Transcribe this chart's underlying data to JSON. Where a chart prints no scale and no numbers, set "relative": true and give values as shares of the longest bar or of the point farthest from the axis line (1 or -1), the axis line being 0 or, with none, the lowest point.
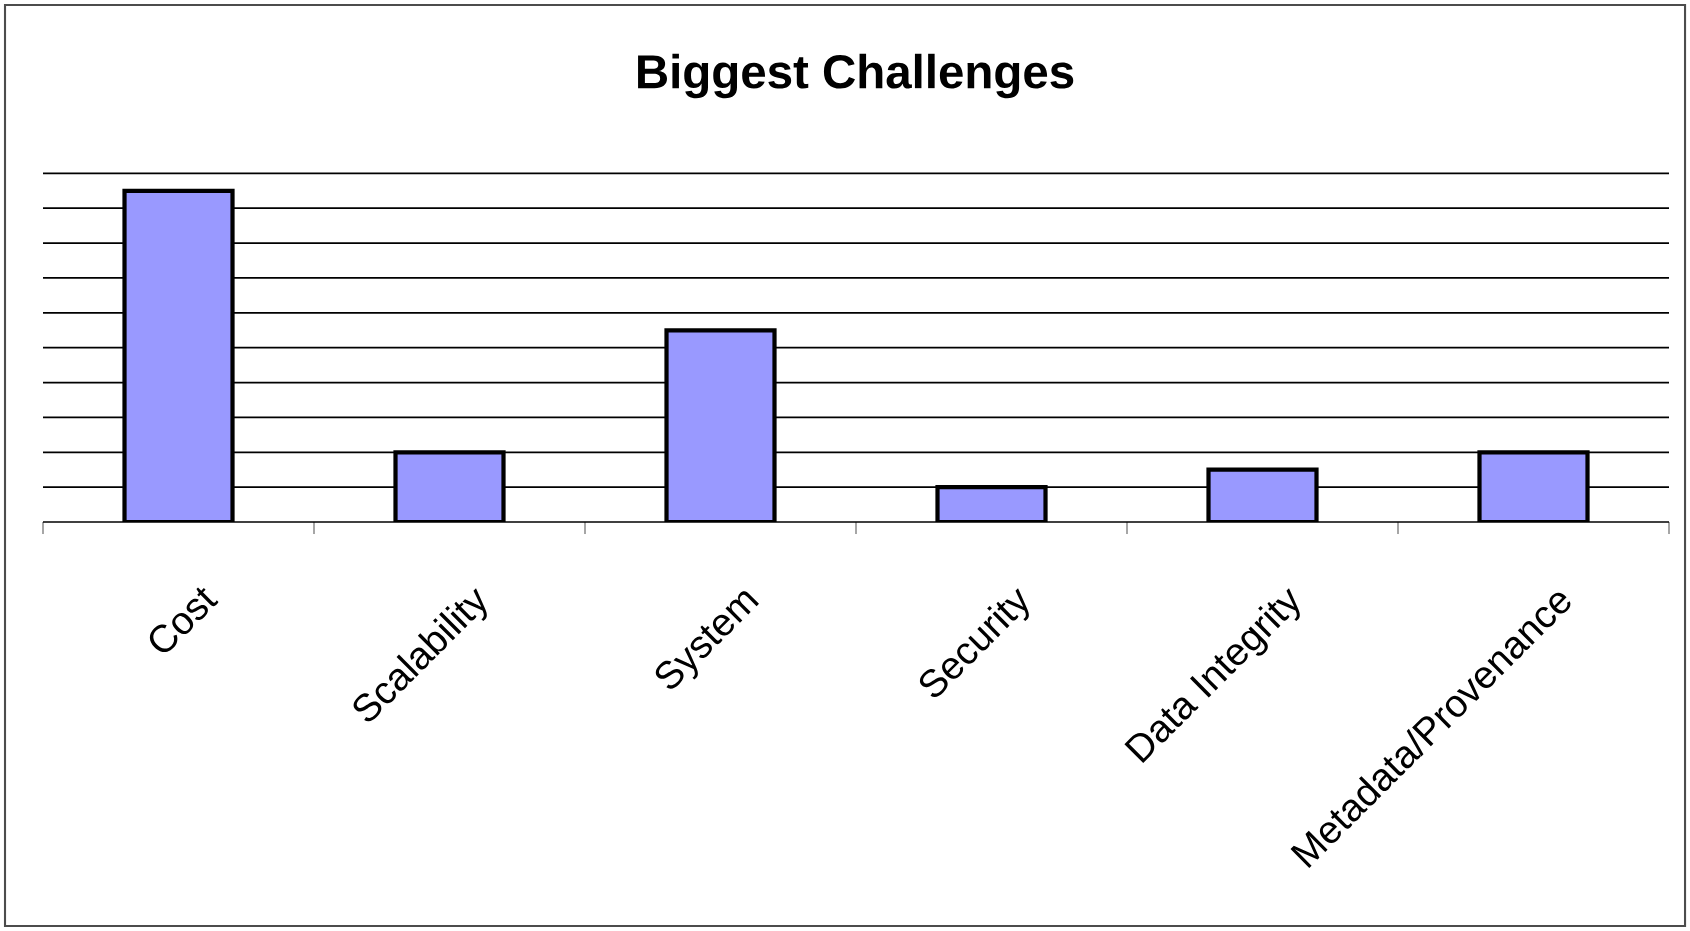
{
  "chart_data": {
    "type": "bar",
    "title": "Biggest Challenges",
    "relative": true,
    "categories": [
      "Cost",
      "Scalability",
      "System",
      "Security",
      "Data Integrity",
      "Metadata/Provenance"
    ],
    "values": [
      1,
      0.2105,
      0.5789,
      0.1053,
      0.1579,
      0.2105
    ],
    "color": "#9999ff",
    "grid": "y"
  }
}
